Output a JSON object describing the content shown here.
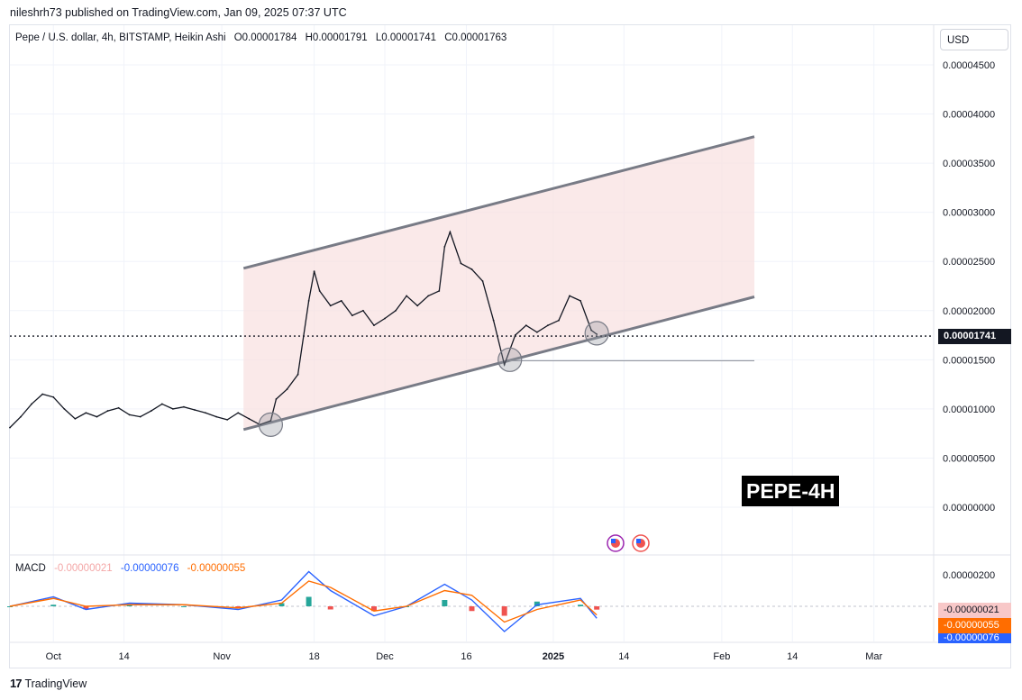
{
  "header": {
    "published_by": "nileshrh73 published on TradingView.com, Jan 09, 2025 07:37 UTC"
  },
  "legend": {
    "symbol": "Pepe / U.S. dollar, 4h, BITSTAMP, Heikin Ashi",
    "open": "O0.00001784",
    "high": "H0.00001791",
    "low": "L0.00001741",
    "close": "C0.00001763"
  },
  "currency_button": "USD",
  "chart_label": "PEPE-4H",
  "footer": {
    "brand": "TradingView"
  },
  "colors": {
    "channel_fill": "#f8e2e2",
    "channel_line": "#787b86",
    "candles": "#131722",
    "macd_line": "#2962ff",
    "signal_line": "#ff6d00",
    "hist_pos": "#26a69a",
    "hist_neg": "#ef5350",
    "price_tag_bg": "#131722",
    "macd_tag_hist": "#f8c8c8",
    "macd_tag_signal": "#ff6d00",
    "macd_tag_macd": "#2962ff"
  },
  "price_axis": {
    "ticks": [
      "0.00004500",
      "0.00004000",
      "0.00003500",
      "0.00003000",
      "0.00002500",
      "0.00002000",
      "0.00001500",
      "0.00001000",
      "0.00000500",
      "0.00000000"
    ],
    "current_price_label": "0.00001741"
  },
  "macd_axis": {
    "ticks": [
      "0.00000200"
    ],
    "hist_label": "-0.00000021",
    "signal_label": "-0.00000055",
    "macd_label": "-0.00000076"
  },
  "macd_legend": {
    "title": "MACD",
    "hist": "-0.00000021",
    "macd": "-0.00000076",
    "signal": "-0.00000055"
  },
  "chart_data": [
    {
      "type": "line",
      "description_series": "Heikin Ashi 4h price of PEPE/USD",
      "title": "Pepe / U.S. dollar, 4h, BITSTAMP, Heikin Ashi",
      "x_ticks": [
        "Oct",
        "14",
        "Nov",
        "18",
        "Dec",
        "16",
        "2025",
        "14",
        "Feb",
        "14",
        "Mar"
      ],
      "ylim": [
        0.0,
        4.7e-05
      ],
      "y_ticks": [
        4.5e-05,
        4e-05,
        3.5e-05,
        3e-05,
        2.5e-05,
        2e-05,
        1.5e-05,
        1e-05,
        5e-06,
        0.0
      ],
      "price_series": [
        [
          "2024-09-23",
          8.1e-06
        ],
        [
          "2024-09-25",
          9.2e-06
        ],
        [
          "2024-09-27",
          1.05e-05
        ],
        [
          "2024-09-29",
          1.15e-05
        ],
        [
          "2024-10-01",
          1.12e-05
        ],
        [
          "2024-10-03",
          1e-05
        ],
        [
          "2024-10-05",
          9e-06
        ],
        [
          "2024-10-07",
          9.6e-06
        ],
        [
          "2024-10-09",
          9.2e-06
        ],
        [
          "2024-10-11",
          9.8e-06
        ],
        [
          "2024-10-13",
          1.01e-05
        ],
        [
          "2024-10-15",
          9.4e-06
        ],
        [
          "2024-10-17",
          9.2e-06
        ],
        [
          "2024-10-19",
          9.8e-06
        ],
        [
          "2024-10-21",
          1.05e-05
        ],
        [
          "2024-10-23",
          1e-05
        ],
        [
          "2024-10-25",
          1.02e-05
        ],
        [
          "2024-10-27",
          9.9e-06
        ],
        [
          "2024-10-29",
          9.6e-06
        ],
        [
          "2024-10-31",
          9.2e-06
        ],
        [
          "2024-11-02",
          8.9e-06
        ],
        [
          "2024-11-04",
          9.6e-06
        ],
        [
          "2024-11-06",
          9e-06
        ],
        [
          "2024-11-08",
          8.4e-06
        ],
        [
          "2024-11-10",
          8.8e-06
        ],
        [
          "2024-11-11",
          1.1e-05
        ],
        [
          "2024-11-13",
          1.2e-05
        ],
        [
          "2024-11-15",
          1.35e-05
        ],
        [
          "2024-11-17",
          2.1e-05
        ],
        [
          "2024-11-18",
          2.4e-05
        ],
        [
          "2024-11-19",
          2.2e-05
        ],
        [
          "2024-11-21",
          2.05e-05
        ],
        [
          "2024-11-23",
          2.1e-05
        ],
        [
          "2024-11-25",
          1.95e-05
        ],
        [
          "2024-11-27",
          2e-05
        ],
        [
          "2024-11-29",
          1.85e-05
        ],
        [
          "2024-12-01",
          1.92e-05
        ],
        [
          "2024-12-03",
          2e-05
        ],
        [
          "2024-12-05",
          2.15e-05
        ],
        [
          "2024-12-07",
          2.05e-05
        ],
        [
          "2024-12-09",
          2.15e-05
        ],
        [
          "2024-12-11",
          2.2e-05
        ],
        [
          "2024-12-12",
          2.65e-05
        ],
        [
          "2024-12-13",
          2.8e-05
        ],
        [
          "2024-12-15",
          2.48e-05
        ],
        [
          "2024-12-17",
          2.42e-05
        ],
        [
          "2024-12-19",
          2.3e-05
        ],
        [
          "2024-12-21",
          1.9e-05
        ],
        [
          "2024-12-23",
          1.45e-05
        ],
        [
          "2024-12-25",
          1.75e-05
        ],
        [
          "2024-12-27",
          1.85e-05
        ],
        [
          "2024-12-29",
          1.78e-05
        ],
        [
          "2024-12-31",
          1.85e-05
        ],
        [
          "2025-01-02",
          1.9e-05
        ],
        [
          "2025-01-04",
          2.15e-05
        ],
        [
          "2025-01-06",
          2.1e-05
        ],
        [
          "2025-01-08",
          1.8e-05
        ],
        [
          "2025-01-09",
          1.76e-05
        ]
      ],
      "channel": {
        "lower_line": [
          [
            "2024-11-05",
            7.9e-06
          ],
          [
            "2025-02-07",
            2.14e-05
          ]
        ],
        "upper_line": [
          [
            "2024-11-05",
            2.43e-05
          ],
          [
            "2025-02-07",
            3.77e-05
          ]
        ]
      },
      "support_line": {
        "from": "2024-12-24",
        "to": "2025-02-07",
        "value": 1.49e-05
      },
      "current_price": 1.741e-05,
      "highlight_circles": [
        [
          "2024-11-10",
          8.4e-06
        ],
        [
          "2024-12-24",
          1.5e-05
        ],
        [
          "2025-01-09",
          1.77e-05
        ]
      ]
    },
    {
      "type": "bar",
      "title": "MACD",
      "y_ticks": [
        2e-06
      ],
      "ylim": [
        -2e-06,
        2.5e-06
      ],
      "macd": [
        [
          "2024-09-23",
          0.0
        ],
        [
          "2024-10-01",
          6e-07
        ],
        [
          "2024-10-07",
          -2e-07
        ],
        [
          "2024-10-15",
          2e-07
        ],
        [
          "2024-10-25",
          1e-07
        ],
        [
          "2024-11-04",
          -2e-07
        ],
        [
          "2024-11-12",
          4e-07
        ],
        [
          "2024-11-17",
          2.2e-06
        ],
        [
          "2024-11-21",
          1e-06
        ],
        [
          "2024-11-29",
          -6e-07
        ],
        [
          "2024-12-05",
          0.0
        ],
        [
          "2024-12-12",
          1.4e-06
        ],
        [
          "2024-12-17",
          4e-07
        ],
        [
          "2024-12-23",
          -1.6e-06
        ],
        [
          "2024-12-29",
          1e-07
        ],
        [
          "2025-01-06",
          5e-07
        ],
        [
          "2025-01-09",
          -7.6e-07
        ]
      ],
      "signal": [
        [
          "2024-09-23",
          0.0
        ],
        [
          "2024-10-01",
          5e-07
        ],
        [
          "2024-10-07",
          0.0
        ],
        [
          "2024-10-15",
          1e-07
        ],
        [
          "2024-10-25",
          1e-07
        ],
        [
          "2024-11-04",
          -1e-07
        ],
        [
          "2024-11-12",
          2e-07
        ],
        [
          "2024-11-17",
          1.6e-06
        ],
        [
          "2024-11-21",
          1.2e-06
        ],
        [
          "2024-11-29",
          -3e-07
        ],
        [
          "2024-12-05",
          0.0
        ],
        [
          "2024-12-12",
          1e-06
        ],
        [
          "2024-12-17",
          7e-07
        ],
        [
          "2024-12-23",
          -1e-06
        ],
        [
          "2024-12-29",
          -2e-07
        ],
        [
          "2025-01-06",
          4e-07
        ],
        [
          "2025-01-09",
          -5.5e-07
        ]
      ]
    }
  ]
}
